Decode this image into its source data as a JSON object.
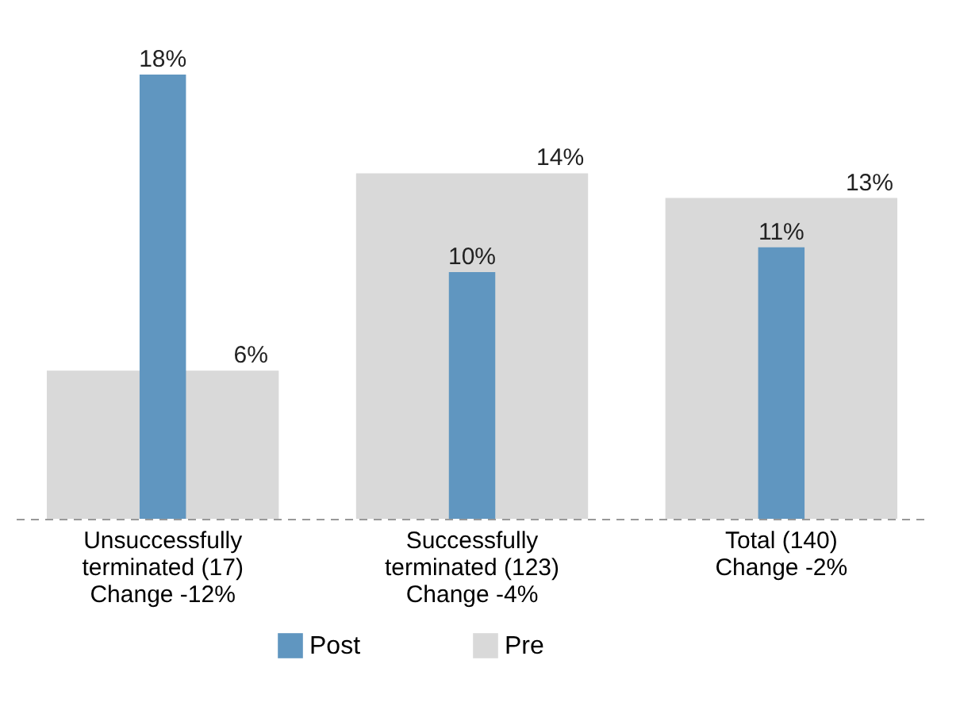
{
  "chart_data": {
    "type": "bar",
    "categories": [
      "Unsuccessfully\nterminated (17)\nChange -12%",
      "Successfully\nterminated (123)\nChange -4%",
      "Total (140)\nChange -2%"
    ],
    "series": [
      {
        "name": "Post",
        "color": "#6096c0",
        "values": [
          18,
          10,
          11
        ],
        "value_labels": [
          "18%",
          "10%",
          "11%"
        ]
      },
      {
        "name": "Pre",
        "color": "#d9d9d9",
        "values": [
          6,
          14,
          13
        ],
        "value_labels": [
          "6%",
          "14%",
          "13%"
        ]
      }
    ],
    "legend": "bottom",
    "grid": false
  }
}
